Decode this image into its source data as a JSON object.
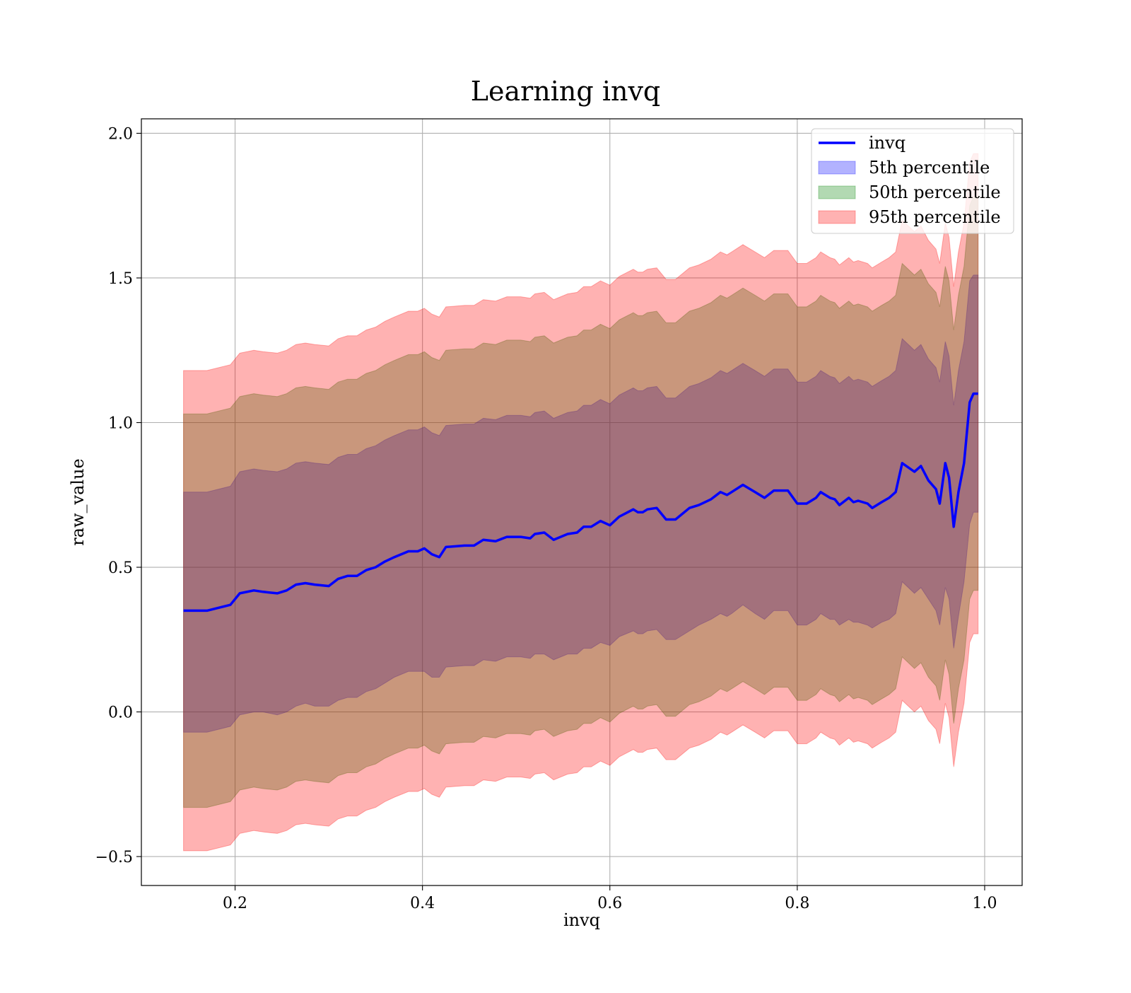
{
  "chart_data": {
    "type": "area",
    "title": "Learning invq",
    "xlabel": "invq",
    "ylabel": "raw_value",
    "xlim": [
      0.1,
      1.04
    ],
    "ylim": [
      -0.6,
      2.05
    ],
    "xticks": [
      0.2,
      0.4,
      0.6,
      0.8,
      1.0
    ],
    "xtick_labels": [
      "0.2",
      "0.4",
      "0.6",
      "0.8",
      "1.0"
    ],
    "yticks": [
      -0.5,
      0.0,
      0.5,
      1.0,
      1.5,
      2.0
    ],
    "ytick_labels": [
      "−0.5",
      "0.0",
      "0.5",
      "1.0",
      "1.5",
      "2.0"
    ],
    "grid": true,
    "legend_position": "top-right",
    "legend": [
      "invq",
      "5th percentile",
      "50th percentile",
      "95th percentile"
    ],
    "colors": {
      "line": "#0000ff",
      "band_5": "#0000ff",
      "band_50": "#008000",
      "band_95": "#ff0000"
    },
    "x": [
      0.145,
      0.17,
      0.195,
      0.205,
      0.22,
      0.23,
      0.245,
      0.255,
      0.265,
      0.275,
      0.285,
      0.3,
      0.31,
      0.32,
      0.33,
      0.34,
      0.35,
      0.36,
      0.37,
      0.385,
      0.395,
      0.402,
      0.41,
      0.418,
      0.425,
      0.445,
      0.455,
      0.465,
      0.478,
      0.49,
      0.505,
      0.515,
      0.52,
      0.53,
      0.54,
      0.555,
      0.565,
      0.572,
      0.58,
      0.59,
      0.6,
      0.61,
      0.625,
      0.63,
      0.635,
      0.64,
      0.65,
      0.66,
      0.67,
      0.685,
      0.695,
      0.708,
      0.718,
      0.725,
      0.73,
      0.742,
      0.755,
      0.765,
      0.775,
      0.79,
      0.8,
      0.81,
      0.82,
      0.825,
      0.835,
      0.84,
      0.845,
      0.855,
      0.86,
      0.865,
      0.875,
      0.88,
      0.89,
      0.898,
      0.905,
      0.912,
      0.925,
      0.932,
      0.94,
      0.948,
      0.952,
      0.958,
      0.962,
      0.967,
      0.972,
      0.978,
      0.984,
      0.988,
      0.993
    ],
    "series": [
      {
        "name": "invq",
        "values": [
          0.35,
          0.35,
          0.37,
          0.41,
          0.42,
          0.415,
          0.41,
          0.42,
          0.44,
          0.445,
          0.44,
          0.435,
          0.46,
          0.47,
          0.47,
          0.49,
          0.5,
          0.52,
          0.535,
          0.555,
          0.555,
          0.565,
          0.545,
          0.535,
          0.57,
          0.575,
          0.575,
          0.595,
          0.59,
          0.605,
          0.605,
          0.6,
          0.615,
          0.62,
          0.595,
          0.615,
          0.62,
          0.64,
          0.64,
          0.66,
          0.645,
          0.675,
          0.7,
          0.69,
          0.69,
          0.7,
          0.705,
          0.665,
          0.665,
          0.705,
          0.715,
          0.735,
          0.76,
          0.75,
          0.76,
          0.785,
          0.76,
          0.74,
          0.765,
          0.765,
          0.72,
          0.72,
          0.74,
          0.76,
          0.74,
          0.735,
          0.715,
          0.74,
          0.725,
          0.73,
          0.72,
          0.705,
          0.725,
          0.74,
          0.76,
          0.86,
          0.83,
          0.85,
          0.8,
          0.77,
          0.72,
          0.86,
          0.81,
          0.64,
          0.76,
          0.86,
          1.07,
          1.1,
          1.1
        ]
      }
    ],
    "bands": [
      {
        "name": "5th percentile",
        "lower": [
          -0.07,
          -0.07,
          -0.05,
          -0.01,
          0.0,
          0.0,
          -0.01,
          0.0,
          0.02,
          0.03,
          0.02,
          0.02,
          0.04,
          0.05,
          0.05,
          0.07,
          0.08,
          0.1,
          0.12,
          0.14,
          0.14,
          0.14,
          0.12,
          0.12,
          0.155,
          0.16,
          0.16,
          0.18,
          0.175,
          0.19,
          0.19,
          0.185,
          0.2,
          0.2,
          0.18,
          0.2,
          0.2,
          0.22,
          0.22,
          0.24,
          0.23,
          0.26,
          0.28,
          0.27,
          0.27,
          0.28,
          0.285,
          0.25,
          0.25,
          0.28,
          0.3,
          0.32,
          0.34,
          0.33,
          0.34,
          0.37,
          0.34,
          0.32,
          0.35,
          0.35,
          0.3,
          0.3,
          0.32,
          0.34,
          0.32,
          0.32,
          0.3,
          0.32,
          0.31,
          0.31,
          0.3,
          0.29,
          0.31,
          0.32,
          0.34,
          0.45,
          0.41,
          0.43,
          0.39,
          0.35,
          0.3,
          0.43,
          0.39,
          0.22,
          0.33,
          0.45,
          0.65,
          0.69,
          0.69
        ],
        "upper": [
          0.76,
          0.76,
          0.78,
          0.83,
          0.84,
          0.835,
          0.83,
          0.84,
          0.86,
          0.865,
          0.86,
          0.855,
          0.88,
          0.89,
          0.89,
          0.91,
          0.92,
          0.94,
          0.955,
          0.975,
          0.975,
          0.985,
          0.965,
          0.955,
          0.99,
          0.995,
          0.995,
          1.015,
          1.01,
          1.025,
          1.025,
          1.02,
          1.035,
          1.04,
          1.015,
          1.035,
          1.04,
          1.06,
          1.06,
          1.08,
          1.065,
          1.095,
          1.12,
          1.11,
          1.11,
          1.12,
          1.125,
          1.085,
          1.085,
          1.125,
          1.135,
          1.155,
          1.18,
          1.17,
          1.18,
          1.205,
          1.18,
          1.16,
          1.185,
          1.185,
          1.14,
          1.14,
          1.16,
          1.18,
          1.16,
          1.155,
          1.135,
          1.16,
          1.145,
          1.15,
          1.14,
          1.125,
          1.145,
          1.16,
          1.18,
          1.29,
          1.25,
          1.27,
          1.22,
          1.19,
          1.14,
          1.28,
          1.23,
          1.06,
          1.18,
          1.28,
          1.49,
          1.51,
          1.51
        ]
      },
      {
        "name": "50th percentile",
        "lower": [
          -0.33,
          -0.33,
          -0.31,
          -0.27,
          -0.26,
          -0.265,
          -0.27,
          -0.26,
          -0.24,
          -0.235,
          -0.24,
          -0.245,
          -0.22,
          -0.21,
          -0.21,
          -0.19,
          -0.18,
          -0.16,
          -0.145,
          -0.125,
          -0.125,
          -0.115,
          -0.135,
          -0.145,
          -0.11,
          -0.105,
          -0.105,
          -0.085,
          -0.09,
          -0.075,
          -0.075,
          -0.08,
          -0.065,
          -0.06,
          -0.085,
          -0.065,
          -0.06,
          -0.04,
          -0.04,
          -0.02,
          -0.035,
          -0.005,
          0.02,
          0.01,
          0.01,
          0.02,
          0.025,
          -0.015,
          -0.015,
          0.025,
          0.035,
          0.055,
          0.08,
          0.07,
          0.08,
          0.105,
          0.08,
          0.06,
          0.085,
          0.085,
          0.04,
          0.04,
          0.06,
          0.08,
          0.06,
          0.055,
          0.035,
          0.06,
          0.045,
          0.05,
          0.04,
          0.025,
          0.045,
          0.06,
          0.08,
          0.19,
          0.15,
          0.17,
          0.12,
          0.09,
          0.04,
          0.18,
          0.13,
          -0.04,
          0.08,
          0.18,
          0.39,
          0.42,
          0.42
        ],
        "upper": [
          1.03,
          1.03,
          1.05,
          1.09,
          1.1,
          1.095,
          1.09,
          1.1,
          1.12,
          1.125,
          1.12,
          1.115,
          1.14,
          1.15,
          1.15,
          1.17,
          1.18,
          1.2,
          1.215,
          1.235,
          1.235,
          1.245,
          1.225,
          1.215,
          1.25,
          1.255,
          1.255,
          1.275,
          1.27,
          1.285,
          1.285,
          1.28,
          1.295,
          1.3,
          1.275,
          1.295,
          1.3,
          1.32,
          1.32,
          1.34,
          1.325,
          1.355,
          1.38,
          1.37,
          1.37,
          1.38,
          1.385,
          1.345,
          1.345,
          1.385,
          1.395,
          1.415,
          1.44,
          1.43,
          1.44,
          1.465,
          1.44,
          1.42,
          1.445,
          1.445,
          1.4,
          1.4,
          1.42,
          1.44,
          1.42,
          1.415,
          1.395,
          1.42,
          1.405,
          1.41,
          1.4,
          1.385,
          1.405,
          1.42,
          1.44,
          1.55,
          1.51,
          1.53,
          1.48,
          1.45,
          1.4,
          1.54,
          1.49,
          1.32,
          1.44,
          1.54,
          1.75,
          1.78,
          1.78
        ]
      },
      {
        "name": "95th percentile",
        "lower": [
          -0.48,
          -0.48,
          -0.46,
          -0.42,
          -0.41,
          -0.415,
          -0.42,
          -0.41,
          -0.39,
          -0.385,
          -0.39,
          -0.395,
          -0.37,
          -0.36,
          -0.36,
          -0.34,
          -0.33,
          -0.31,
          -0.295,
          -0.275,
          -0.275,
          -0.265,
          -0.285,
          -0.295,
          -0.26,
          -0.255,
          -0.255,
          -0.235,
          -0.24,
          -0.225,
          -0.225,
          -0.23,
          -0.215,
          -0.21,
          -0.235,
          -0.215,
          -0.21,
          -0.19,
          -0.19,
          -0.17,
          -0.185,
          -0.155,
          -0.13,
          -0.14,
          -0.14,
          -0.13,
          -0.125,
          -0.165,
          -0.165,
          -0.125,
          -0.115,
          -0.095,
          -0.07,
          -0.08,
          -0.07,
          -0.045,
          -0.07,
          -0.09,
          -0.065,
          -0.065,
          -0.11,
          -0.11,
          -0.09,
          -0.07,
          -0.09,
          -0.095,
          -0.115,
          -0.09,
          -0.105,
          -0.1,
          -0.11,
          -0.125,
          -0.105,
          -0.09,
          -0.07,
          0.04,
          0.0,
          0.02,
          -0.03,
          -0.06,
          -0.11,
          0.03,
          -0.02,
          -0.19,
          -0.07,
          0.03,
          0.24,
          0.27,
          0.27
        ],
        "upper": [
          1.18,
          1.18,
          1.2,
          1.24,
          1.25,
          1.245,
          1.24,
          1.25,
          1.27,
          1.275,
          1.27,
          1.265,
          1.29,
          1.3,
          1.3,
          1.32,
          1.33,
          1.35,
          1.365,
          1.385,
          1.385,
          1.395,
          1.375,
          1.365,
          1.4,
          1.405,
          1.405,
          1.425,
          1.42,
          1.435,
          1.435,
          1.43,
          1.445,
          1.45,
          1.425,
          1.445,
          1.45,
          1.47,
          1.47,
          1.49,
          1.475,
          1.505,
          1.53,
          1.52,
          1.52,
          1.53,
          1.535,
          1.495,
          1.495,
          1.535,
          1.545,
          1.565,
          1.59,
          1.58,
          1.59,
          1.615,
          1.59,
          1.57,
          1.595,
          1.595,
          1.55,
          1.55,
          1.57,
          1.59,
          1.57,
          1.565,
          1.545,
          1.57,
          1.555,
          1.56,
          1.55,
          1.535,
          1.555,
          1.57,
          1.59,
          1.7,
          1.66,
          1.68,
          1.63,
          1.6,
          1.55,
          1.69,
          1.64,
          1.47,
          1.59,
          1.69,
          1.9,
          1.93,
          1.93
        ]
      }
    ]
  }
}
